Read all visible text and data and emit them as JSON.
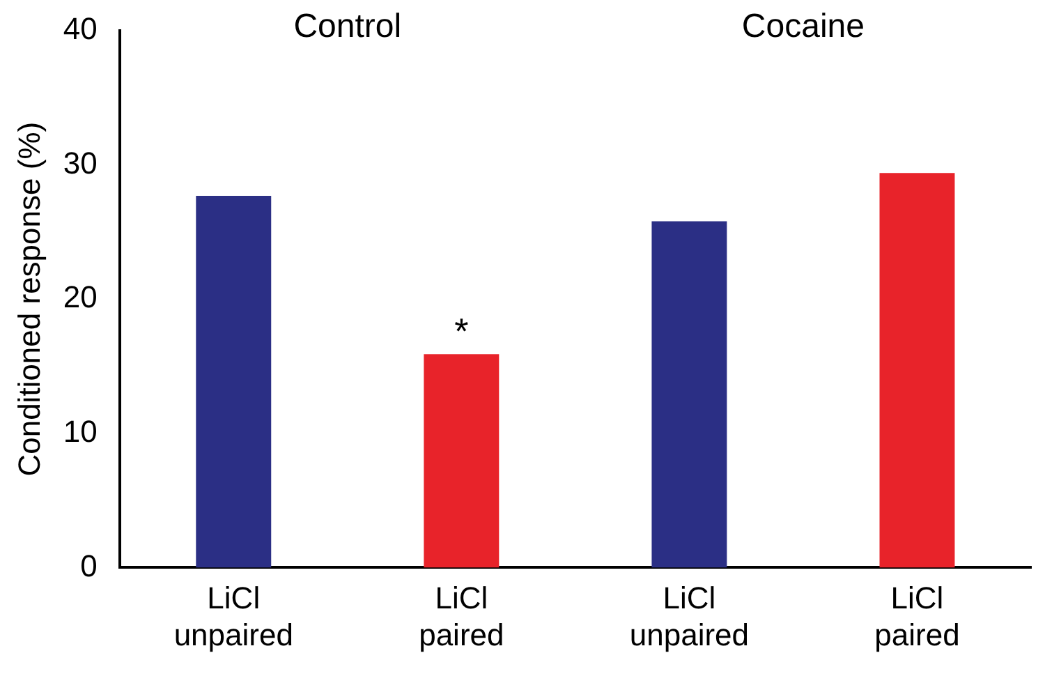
{
  "chart_data": {
    "type": "bar",
    "ylabel": "Conditioned response (%)",
    "categories": [
      "LiCl\nunpaired",
      "LiCl\npaired",
      "LiCl\nunpaired",
      "LiCl\npaired"
    ],
    "values": [
      27.7,
      15.9,
      25.8,
      29.4
    ],
    "colors": [
      "#2b2f85",
      "#e8232a",
      "#2b2f85",
      "#e8232a"
    ],
    "ylim": [
      0,
      40
    ],
    "yticks": [
      0,
      10,
      20,
      30,
      40
    ],
    "grid": false,
    "legend": false,
    "annotations": [
      "Control",
      "Cocaine",
      {
        "text": "*",
        "x": "LiCl\npaired",
        "y": 15.9
      }
    ]
  }
}
